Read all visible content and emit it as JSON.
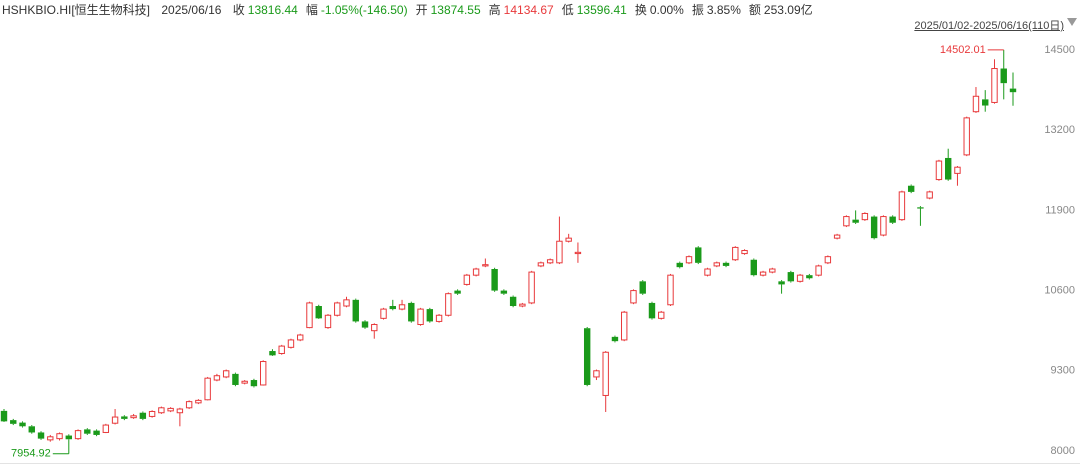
{
  "header": {
    "symbol": "HSHKBIO.HI[恒生生物科技]",
    "date": "2025/06/16",
    "items": [
      {
        "label": "收",
        "value": "13816.44",
        "color": "#1a9a1a"
      },
      {
        "label": "幅",
        "value": "-1.05%(-146.50)",
        "color": "#1a9a1a"
      },
      {
        "label": "开",
        "value": "13874.55",
        "color": "#1a9a1a"
      },
      {
        "label": "高",
        "value": "14134.67",
        "color": "#e8393b"
      },
      {
        "label": "低",
        "value": "13596.41",
        "color": "#1a9a1a"
      },
      {
        "label": "换",
        "value": "0.00%",
        "color": "#333333"
      },
      {
        "label": "振",
        "value": "3.85%",
        "color": "#333333"
      },
      {
        "label": "额",
        "value": "253.09亿",
        "color": "#333333"
      }
    ],
    "range": "2025/01/02-2025/06/16(110日)"
  },
  "chart_data": {
    "type": "candlestick",
    "up_color": "#e8393b",
    "down_color": "#1a9a1a",
    "ylim": [
      7805,
      14711
    ],
    "yticks": [
      8000,
      9300,
      10600,
      11900,
      13200,
      14500
    ],
    "grid": false,
    "open": [
      8650,
      8500,
      8460,
      8400,
      8300,
      8180,
      8200,
      8250,
      8200,
      8350,
      8330,
      8300,
      8450,
      8560,
      8540,
      8620,
      8560,
      8620,
      8650,
      8620,
      8700,
      8780,
      8830,
      9150,
      9200,
      9250,
      9100,
      9150,
      9070,
      9620,
      9580,
      9680,
      9800,
      10000,
      10350,
      10000,
      10200,
      10350,
      10450,
      10100,
      9950,
      10150,
      10350,
      10300,
      10400,
      10050,
      10300,
      10100,
      10200,
      10600,
      10700,
      10850,
      11000,
      10950,
      10600,
      10500,
      10350,
      10400,
      11000,
      11050,
      11050,
      11400,
      11200,
      9990,
      9200,
      8900,
      9850,
      9800,
      10400,
      10750,
      10400,
      10150,
      10370,
      11050,
      11050,
      11300,
      10850,
      11000,
      11050,
      11100,
      11200,
      11100,
      10850,
      10900,
      10750,
      10900,
      10750,
      10850,
      10850,
      11050,
      11450,
      11650,
      11750,
      11750,
      11800,
      11500,
      11800,
      11750,
      12300,
      11950,
      12100,
      12400,
      12750,
      12500,
      12800,
      13500,
      13700,
      13650,
      14200,
      13874.55
    ],
    "high": [
      8680,
      8520,
      8480,
      8420,
      8320,
      8260,
      8300,
      8270,
      8350,
      8370,
      8350,
      8440,
      8680,
      8580,
      8600,
      8640,
      8660,
      8720,
      8710,
      8700,
      8820,
      8840,
      9200,
      9250,
      9320,
      9270,
      9150,
      9170,
      9470,
      9650,
      9720,
      9820,
      9900,
      10420,
      10370,
      10220,
      10420,
      10500,
      10470,
      10120,
      10070,
      10320,
      10450,
      10450,
      10420,
      10320,
      10320,
      10220,
      10570,
      10620,
      10870,
      10970,
      11120,
      10970,
      10620,
      10520,
      10400,
      10920,
      11070,
      11120,
      11800,
      11520,
      11380,
      10010,
      9320,
      9620,
      9870,
      10270,
      10620,
      10770,
      10420,
      10270,
      10870,
      11070,
      11170,
      11320,
      10970,
      11070,
      11070,
      11320,
      11270,
      11120,
      10920,
      10970,
      10770,
      10920,
      10870,
      10870,
      11020,
      11170,
      11520,
      11820,
      11900,
      11870,
      11820,
      11820,
      11820,
      12220,
      12320,
      11970,
      12220,
      12720,
      12900,
      12620,
      13420,
      13900,
      13850,
      14350,
      14502.01,
      14134.67
    ],
    "low": [
      8470,
      8420,
      8380,
      8280,
      8180,
      8150,
      8170,
      7954.92,
      8180,
      8260,
      8240,
      8290,
      8430,
      8500,
      8520,
      8500,
      8540,
      8600,
      8630,
      8400,
      8680,
      8760,
      8820,
      9130,
      9180,
      9050,
      9080,
      9030,
      9060,
      9540,
      9560,
      9660,
      9780,
      9990,
      10140,
      9980,
      10180,
      10330,
      10080,
      9980,
      9820,
      10130,
      10280,
      10280,
      10080,
      10030,
      10080,
      10080,
      10180,
      10530,
      10680,
      10830,
      10980,
      10580,
      10530,
      10330,
      10330,
      10380,
      10980,
      11030,
      11030,
      11380,
      11050,
      9050,
      9150,
      8632,
      9760,
      9780,
      10380,
      10530,
      10130,
      10130,
      10350,
      10960,
      11030,
      11030,
      10830,
      10980,
      10980,
      11080,
      11180,
      10830,
      10830,
      10880,
      10550,
      10730,
      10730,
      10780,
      10830,
      11030,
      11430,
      11630,
      11680,
      11730,
      11430,
      11480,
      11680,
      11730,
      12180,
      11650,
      12080,
      12380,
      12380,
      12300,
      12780,
      13480,
      13500,
      13630,
      13700,
      13596.41
    ],
    "close": [
      8480,
      8440,
      8400,
      8300,
      8200,
      8230,
      8280,
      8190,
      8330,
      8280,
      8260,
      8420,
      8550,
      8520,
      8570,
      8520,
      8640,
      8700,
      8690,
      8680,
      8800,
      8820,
      9180,
      9220,
      9300,
      9070,
      9130,
      9050,
      9450,
      9550,
      9700,
      9800,
      9880,
      10400,
      10150,
      10200,
      10400,
      10450,
      10100,
      10000,
      10050,
      10300,
      10300,
      10370,
      10100,
      10300,
      10100,
      10200,
      10550,
      10550,
      10850,
      10950,
      11020,
      10600,
      10550,
      10350,
      10380,
      10900,
      11050,
      11100,
      11400,
      11450,
      11220,
      9070,
      9300,
      9600,
      9780,
      10250,
      10600,
      10550,
      10150,
      10250,
      10850,
      10980,
      11150,
      11050,
      10950,
      11050,
      11000,
      11300,
      11250,
      10850,
      10900,
      10950,
      10700,
      10750,
      10850,
      10800,
      11000,
      11150,
      11500,
      11800,
      11700,
      11850,
      11450,
      11800,
      11700,
      12200,
      12200,
      11930,
      12200,
      12700,
      12400,
      12600,
      13400,
      13750,
      13600,
      14200,
      13962.94,
      13816.44
    ]
  }
}
